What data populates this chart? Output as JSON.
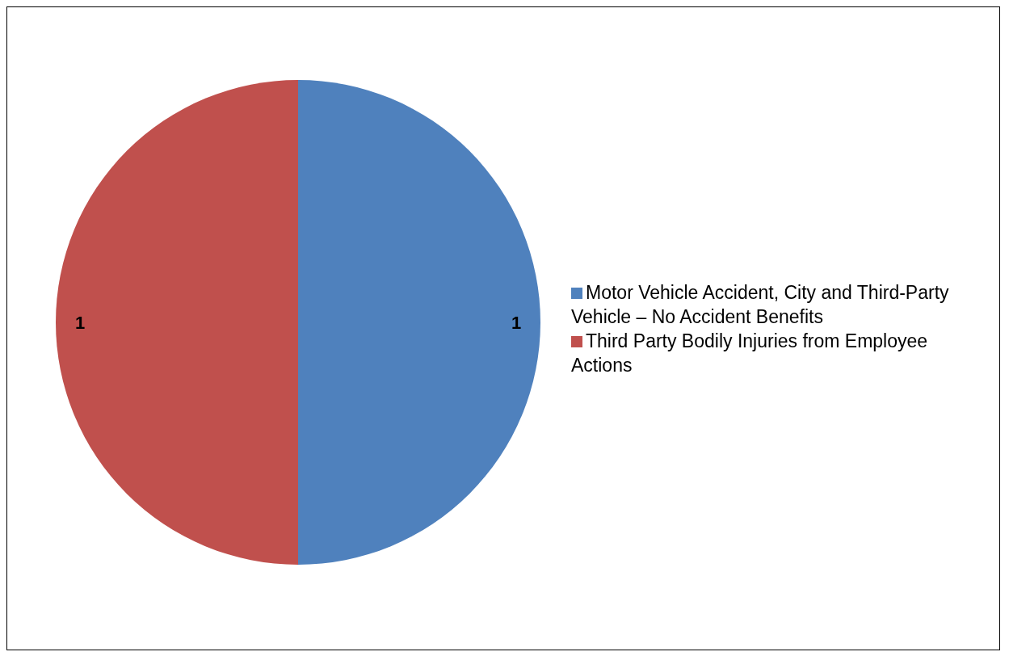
{
  "chart_data": {
    "type": "pie",
    "categories": [
      "Motor Vehicle Accident, City and Third-Party Vehicle – No Accident Benefits",
      "Third Party Bodily Injuries from Employee Actions"
    ],
    "values": [
      1,
      1
    ],
    "colors": [
      "#4f81bd",
      "#c0504d"
    ],
    "data_labels": true,
    "legend": "right"
  }
}
